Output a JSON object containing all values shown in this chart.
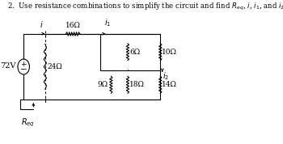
{
  "bg_color": "#ffffff",
  "line_color": "#000000",
  "text_color": "#000000",
  "font_size": 7.0,
  "title_plain": "2.  Use resistance combinations to simplify the circuit and find ",
  "title_math": "$R_{eq}$, $i$, $i_1$, and $i_2$.",
  "source_label": "72V",
  "req_label": "$R_{eq}$",
  "i_label": "$i$",
  "i1_label": "$i_1$",
  "i2_label": "$i_2$",
  "R16": "16Ω",
  "R24": "24Ω",
  "R6": "6Ω",
  "R9": "9Ω",
  "R18": "18Ω",
  "R10": "10Ω",
  "R14": "14Ω"
}
